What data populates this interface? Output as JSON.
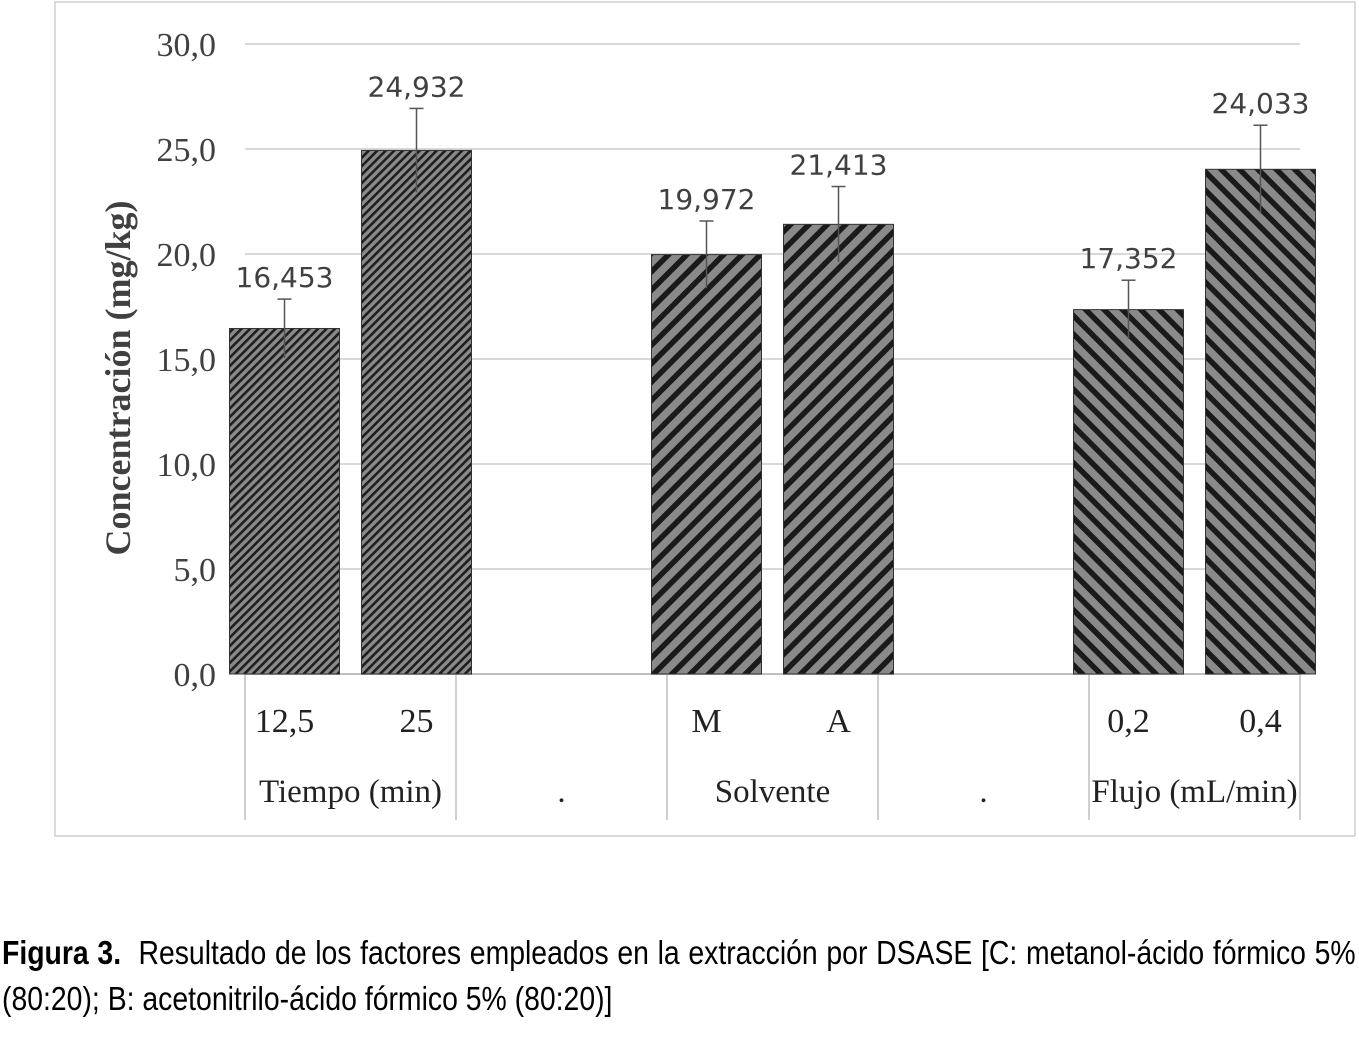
{
  "chart_data": {
    "type": "bar",
    "ylabel": "Concentración (mg/kg)",
    "ylim": [
      0,
      30
    ],
    "yticks": [
      "0,0",
      "5,0",
      "10,0",
      "15,0",
      "20,0",
      "25,0",
      "30,0"
    ],
    "ytick_values": [
      0,
      5,
      10,
      15,
      20,
      25,
      30
    ],
    "grid": true,
    "groups": [
      {
        "name": "Tiempo (min)",
        "bars": [
          {
            "category": "12,5",
            "value": 16.453,
            "label": "16,453",
            "error": 1.4,
            "pattern": "diag-right-fine"
          },
          {
            "category": "25",
            "value": 24.932,
            "label": "24,932",
            "error": 2.0,
            "pattern": "diag-right-fine"
          }
        ]
      },
      {
        "name": ".",
        "bars": []
      },
      {
        "name": "Solvente",
        "bars": [
          {
            "category": "M",
            "value": 19.972,
            "label": "19,972",
            "error": 1.6,
            "pattern": "diag-right-wide"
          },
          {
            "category": "A",
            "value": 21.413,
            "label": "21,413",
            "error": 1.8,
            "pattern": "diag-right-wide"
          }
        ]
      },
      {
        "name": ".",
        "bars": []
      },
      {
        "name": "Flujo (mL/min)",
        "bars": [
          {
            "category": "0,2",
            "value": 17.352,
            "label": "17,352",
            "error": 1.4,
            "pattern": "diag-left-wide"
          },
          {
            "category": "0,4",
            "value": 24.033,
            "label": "24,033",
            "error": 2.1,
            "pattern": "diag-left-wide"
          }
        ]
      }
    ],
    "colors": {
      "bar_fill": "#7a7a7a",
      "stripe": "#1a1a1a",
      "grid": "#d9d9d9",
      "axis": "#bfbfbf",
      "text": "#404040"
    }
  },
  "caption": {
    "label": "Figura 3.",
    "text": "Resultado de los factores empleados en la extracción por DSASE [C: metanol-ácido fórmico 5% (80:20); B: acetonitrilo-ácido fórmico 5% (80:20)]"
  }
}
